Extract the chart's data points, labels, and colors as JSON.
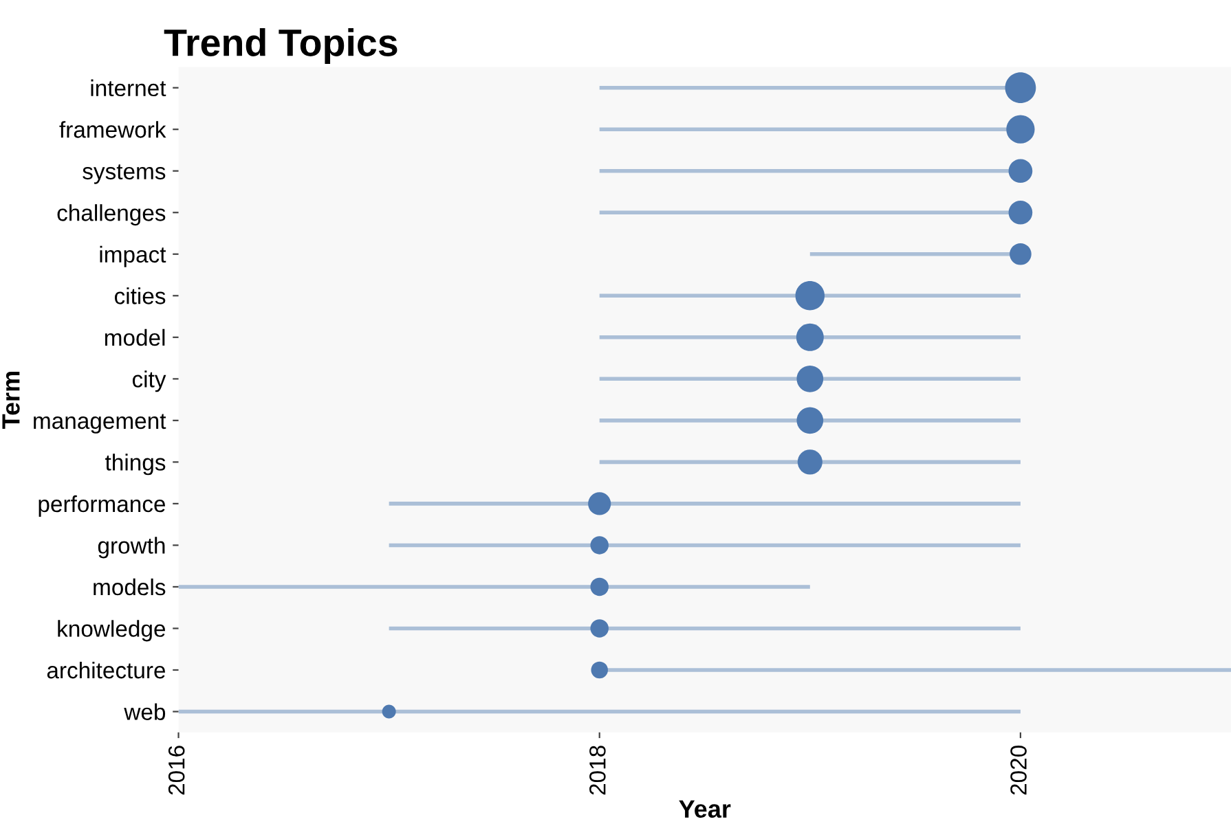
{
  "chart_data": {
    "type": "bubble",
    "orientation": "horizontal",
    "title": "Trend Topics",
    "xlabel": "Year",
    "ylabel": "Term",
    "categories": [
      "internet",
      "framework",
      "systems",
      "challenges",
      "impact",
      "cities",
      "model",
      "city",
      "management",
      "things",
      "performance",
      "growth",
      "models",
      "knowledge",
      "architecture",
      "web"
    ],
    "values": [
      2020,
      2020,
      2020,
      2020,
      2020,
      2019,
      2019,
      2019,
      2019,
      2019,
      2018,
      2018,
      2018,
      2018,
      2018,
      2017
    ],
    "errors": [
      [
        2018,
        2020
      ],
      [
        2018,
        2020
      ],
      [
        2018,
        2020
      ],
      [
        2018,
        2020
      ],
      [
        2019,
        2020
      ],
      [
        2018,
        2020
      ],
      [
        2018,
        2020
      ],
      [
        2018,
        2020
      ],
      [
        2018,
        2020
      ],
      [
        2018,
        2020
      ],
      [
        2017,
        2020
      ],
      [
        2017,
        2020
      ],
      [
        2016,
        2019
      ],
      [
        2017,
        2020
      ],
      [
        2018,
        2021
      ],
      [
        2016,
        2020
      ]
    ],
    "sizes": [
      1,
      0.85,
      0.6,
      0.6,
      0.5,
      0.9,
      0.8,
      0.75,
      0.75,
      0.65,
      0.55,
      0.35,
      0.35,
      0.35,
      0.3,
      0.2
    ],
    "color": "#4e79b0",
    "xlim": [
      2016,
      2021
    ],
    "xticks": [
      2016,
      2018,
      2020
    ],
    "marker": "circle",
    "grid": false,
    "legend": false
  }
}
